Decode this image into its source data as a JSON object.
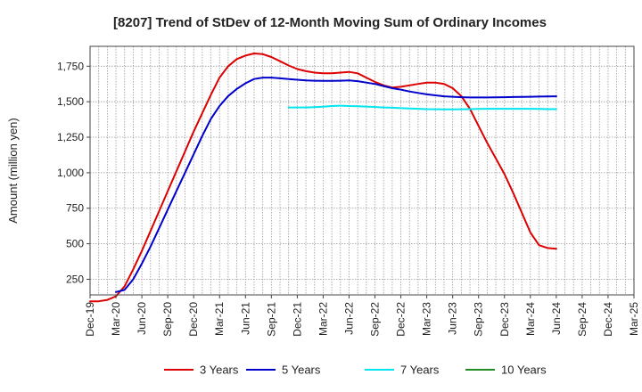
{
  "chart_data": {
    "type": "line",
    "title": "[8207]  Trend of StDev of 12-Month Moving Sum of Ordinary Incomes",
    "xlabel": "",
    "ylabel": "Amount (million yen)",
    "x_ticks": [
      "Dec-19",
      "Mar-20",
      "Jun-20",
      "Sep-20",
      "Dec-20",
      "Mar-21",
      "Jun-21",
      "Sep-21",
      "Dec-21",
      "Mar-22",
      "Jun-22",
      "Sep-22",
      "Dec-22",
      "Mar-23",
      "Jun-23",
      "Sep-23",
      "Dec-23",
      "Mar-24",
      "Jun-24",
      "Sep-24",
      "Dec-24",
      "Mar-25"
    ],
    "y_ticks": [
      250,
      500,
      750,
      1000,
      1250,
      1500,
      1750
    ],
    "y_tick_labels": [
      "250",
      "500",
      "750",
      "1,000",
      "1,250",
      "1,500",
      "1,750"
    ],
    "ylim": [
      140,
      1890
    ],
    "grid": true,
    "legend_position": "bottom",
    "series": [
      {
        "name": "3 Years",
        "color": "#dd0000",
        "points": [
          [
            0,
            95
          ],
          [
            1,
            95
          ],
          [
            2,
            105
          ],
          [
            3,
            130
          ],
          [
            4,
            200
          ],
          [
            5,
            320
          ],
          [
            6,
            450
          ],
          [
            7,
            590
          ],
          [
            8,
            730
          ],
          [
            9,
            870
          ],
          [
            10,
            1010
          ],
          [
            11,
            1150
          ],
          [
            12,
            1290
          ],
          [
            13,
            1420
          ],
          [
            14,
            1550
          ],
          [
            15,
            1670
          ],
          [
            16,
            1750
          ],
          [
            17,
            1800
          ],
          [
            18,
            1825
          ],
          [
            19,
            1840
          ],
          [
            20,
            1835
          ],
          [
            21,
            1815
          ],
          [
            22,
            1785
          ],
          [
            23,
            1755
          ],
          [
            24,
            1730
          ],
          [
            25,
            1715
          ],
          [
            26,
            1705
          ],
          [
            27,
            1700
          ],
          [
            28,
            1700
          ],
          [
            29,
            1705
          ],
          [
            30,
            1710
          ],
          [
            31,
            1700
          ],
          [
            32,
            1670
          ],
          [
            33,
            1640
          ],
          [
            34,
            1615
          ],
          [
            35,
            1600
          ],
          [
            36,
            1605
          ],
          [
            37,
            1615
          ],
          [
            38,
            1625
          ],
          [
            39,
            1635
          ],
          [
            40,
            1635
          ],
          [
            41,
            1625
          ],
          [
            42,
            1595
          ],
          [
            43,
            1540
          ],
          [
            44,
            1450
          ],
          [
            45,
            1330
          ],
          [
            46,
            1210
          ],
          [
            47,
            1100
          ],
          [
            48,
            990
          ],
          [
            49,
            860
          ],
          [
            50,
            720
          ],
          [
            51,
            580
          ],
          [
            52,
            490
          ],
          [
            53,
            470
          ],
          [
            54,
            465
          ]
        ]
      },
      {
        "name": "5 Years",
        "color": "#0000cc",
        "points": [
          [
            3,
            160
          ],
          [
            4,
            175
          ],
          [
            5,
            250
          ],
          [
            6,
            360
          ],
          [
            7,
            480
          ],
          [
            8,
            610
          ],
          [
            9,
            740
          ],
          [
            10,
            870
          ],
          [
            11,
            1000
          ],
          [
            12,
            1130
          ],
          [
            13,
            1260
          ],
          [
            14,
            1380
          ],
          [
            15,
            1470
          ],
          [
            16,
            1540
          ],
          [
            17,
            1590
          ],
          [
            18,
            1630
          ],
          [
            19,
            1660
          ],
          [
            20,
            1670
          ],
          [
            21,
            1670
          ],
          [
            22,
            1665
          ],
          [
            23,
            1660
          ],
          [
            24,
            1655
          ],
          [
            25,
            1650
          ],
          [
            26,
            1648
          ],
          [
            27,
            1647
          ],
          [
            28,
            1647
          ],
          [
            29,
            1648
          ],
          [
            30,
            1650
          ],
          [
            31,
            1645
          ],
          [
            32,
            1635
          ],
          [
            33,
            1625
          ],
          [
            34,
            1610
          ],
          [
            35,
            1595
          ],
          [
            36,
            1585
          ],
          [
            37,
            1572
          ],
          [
            38,
            1562
          ],
          [
            39,
            1552
          ],
          [
            40,
            1545
          ],
          [
            41,
            1538
          ],
          [
            42,
            1535
          ],
          [
            43,
            1532
          ],
          [
            44,
            1530
          ],
          [
            45,
            1530
          ],
          [
            46,
            1530
          ],
          [
            47,
            1531
          ],
          [
            48,
            1532
          ],
          [
            49,
            1533
          ],
          [
            50,
            1534
          ],
          [
            51,
            1535
          ],
          [
            52,
            1536
          ],
          [
            53,
            1537
          ],
          [
            54,
            1538
          ]
        ]
      },
      {
        "name": "7 Years",
        "color": "#00e5ee",
        "points": [
          [
            23,
            1460
          ],
          [
            24,
            1460
          ],
          [
            25,
            1460
          ],
          [
            26,
            1462
          ],
          [
            27,
            1465
          ],
          [
            28,
            1470
          ],
          [
            29,
            1472
          ],
          [
            30,
            1470
          ],
          [
            31,
            1468
          ],
          [
            32,
            1466
          ],
          [
            33,
            1463
          ],
          [
            34,
            1460
          ],
          [
            35,
            1458
          ],
          [
            36,
            1455
          ],
          [
            37,
            1452
          ],
          [
            38,
            1450
          ],
          [
            39,
            1448
          ],
          [
            40,
            1447
          ],
          [
            41,
            1446
          ],
          [
            42,
            1446
          ],
          [
            43,
            1447
          ],
          [
            44,
            1448
          ],
          [
            45,
            1449
          ],
          [
            46,
            1450
          ],
          [
            47,
            1450
          ],
          [
            48,
            1450
          ],
          [
            49,
            1450
          ],
          [
            50,
            1450
          ],
          [
            51,
            1450
          ],
          [
            52,
            1449
          ],
          [
            53,
            1448
          ],
          [
            54,
            1448
          ]
        ]
      },
      {
        "name": "10 Years",
        "color": "#228b22",
        "points": []
      }
    ]
  }
}
